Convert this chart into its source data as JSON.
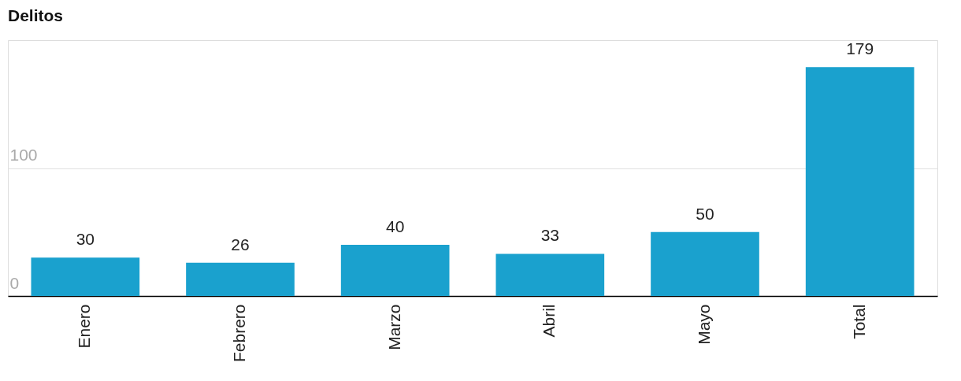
{
  "chart_data": {
    "type": "bar",
    "title": "Delitos",
    "categories": [
      "Enero",
      "Febrero",
      "Marzo",
      "Abril",
      "Mayo",
      "Total"
    ],
    "values": [
      30,
      26,
      40,
      33,
      50,
      179
    ],
    "color": "#1aa1ce",
    "ylim": [
      0,
      200
    ],
    "yticks": [
      0,
      100
    ],
    "grid": "y",
    "data_labels": true
  }
}
